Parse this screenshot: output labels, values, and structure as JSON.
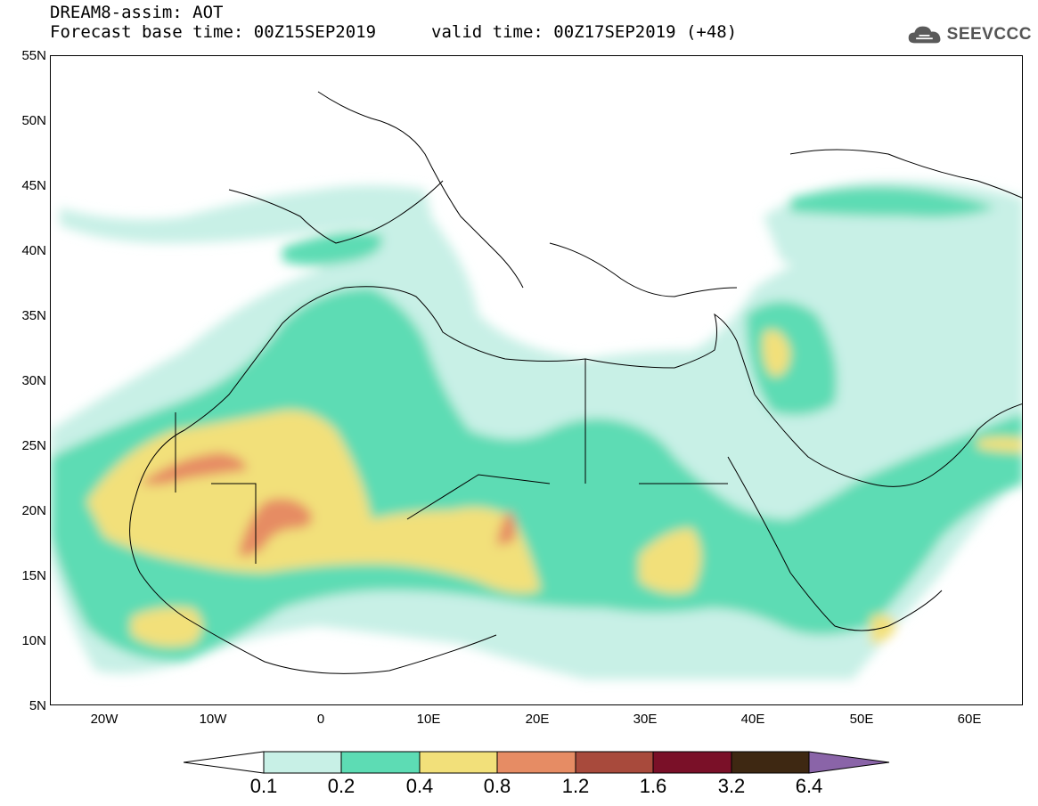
{
  "header": {
    "title": "DREAM8-assim: AOT",
    "base_time": "Forecast base time: 00Z15SEP2019",
    "valid_time": "valid time: 00Z17SEP2019 (+48)"
  },
  "logo": {
    "text": "SEEVCCC",
    "icon": "cloud-icon"
  },
  "map": {
    "variable": "AOT",
    "y_ticks": [
      "55N",
      "50N",
      "45N",
      "40N",
      "35N",
      "30N",
      "25N",
      "20N",
      "15N",
      "10N",
      "5N"
    ],
    "x_ticks": [
      "20W",
      "10W",
      "0",
      "10E",
      "20E",
      "30E",
      "40E",
      "50E",
      "60E"
    ],
    "lon_range": [
      -25,
      65
    ],
    "lat_range": [
      5,
      55
    ]
  },
  "colorbar": {
    "labels": [
      "0.1",
      "0.2",
      "0.4",
      "0.8",
      "1.2",
      "1.6",
      "3.2",
      "6.4"
    ],
    "colors": [
      "#c8f0e6",
      "#5ddcb4",
      "#f2e07a",
      "#e68c64",
      "#a84a3c",
      "#7a1028",
      "#3e2812",
      "#8a64a8"
    ],
    "under_color": "#ffffff"
  }
}
